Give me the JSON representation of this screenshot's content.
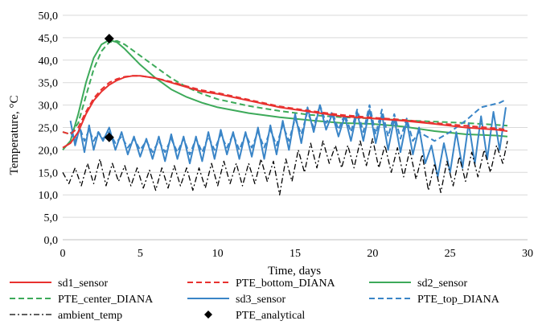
{
  "chart_data": {
    "type": "line",
    "title": "",
    "xlabel": "Time, days",
    "ylabel": "Temperature, °C",
    "xlim": [
      0,
      30
    ],
    "ylim": [
      0,
      50
    ],
    "x_ticks": [
      "0",
      "5",
      "10",
      "15",
      "20",
      "25",
      "30"
    ],
    "y_ticks": [
      "0,0",
      "5,0",
      "10,0",
      "15,0",
      "20,0",
      "25,0",
      "30,0",
      "35,0",
      "40,0",
      "45,0",
      "50,0"
    ],
    "grid": true,
    "legend_position": "bottom",
    "series": [
      {
        "name": "sd1_sensor",
        "color": "#e8312f",
        "style": "solid",
        "x": [
          0,
          0.5,
          1,
          1.5,
          2,
          2.5,
          3,
          3.5,
          4,
          4.5,
          5,
          6,
          7,
          8,
          9,
          10,
          12,
          14,
          16,
          18,
          20,
          22,
          24,
          26,
          28,
          28.7
        ],
        "y": [
          20.5,
          21.5,
          24,
          28,
          31,
          33,
          34.5,
          35.5,
          36.2,
          36.5,
          36.5,
          36,
          35,
          34,
          33,
          32.5,
          31,
          29.5,
          28.5,
          27.5,
          27,
          26.5,
          25.8,
          25,
          24.5,
          24.2
        ]
      },
      {
        "name": "PTE_bottom_DIANA",
        "color": "#e8312f",
        "style": "dashed",
        "x": [
          0,
          0.5,
          1,
          1.5,
          2,
          2.5,
          3,
          3.5,
          4,
          4.5,
          5,
          6,
          7,
          8,
          9,
          10,
          12,
          14,
          16,
          18,
          20,
          22,
          24,
          26,
          28,
          28.7
        ],
        "y": [
          24,
          23.5,
          25,
          28.5,
          31.5,
          33.5,
          35,
          35.8,
          36.3,
          36.5,
          36.5,
          36,
          35.2,
          34.2,
          33.3,
          32.7,
          31.2,
          29.7,
          28.7,
          27.8,
          27.2,
          26.7,
          26,
          25.4,
          24.8,
          24.5
        ]
      },
      {
        "name": "sd2_sensor",
        "color": "#3daa5a",
        "style": "solid",
        "x": [
          0,
          0.5,
          1,
          1.5,
          2,
          2.5,
          3,
          3.5,
          4,
          5,
          6,
          7,
          8,
          9,
          10,
          12,
          14,
          16,
          18,
          20,
          22,
          24,
          26,
          28,
          28.7
        ],
        "y": [
          20,
          22,
          28,
          35,
          40.5,
          43.5,
          44.5,
          44,
          42.5,
          39,
          36,
          33.5,
          31.8,
          30.5,
          29.5,
          28.2,
          27.3,
          26.6,
          26,
          25.8,
          25.2,
          24.2,
          23.5,
          23.2,
          23
        ]
      },
      {
        "name": "PTE_center_DIANA",
        "color": "#3daa5a",
        "style": "dashed",
        "x": [
          0,
          0.5,
          1,
          1.5,
          2,
          2.5,
          3,
          3.5,
          4,
          5,
          6,
          7,
          8,
          9,
          10,
          12,
          14,
          16,
          18,
          20,
          22,
          24,
          26,
          28,
          28.7
        ],
        "y": [
          24,
          23.5,
          26,
          32,
          38,
          42,
          44,
          44.3,
          43.5,
          41,
          38.5,
          36,
          34,
          32.5,
          31.3,
          29.8,
          28.7,
          27.8,
          27.3,
          27,
          26.6,
          26.3,
          26,
          25.6,
          25.4
        ]
      },
      {
        "name": "sd3_sensor",
        "color": "#3a85c7",
        "style": "solid",
        "x": [
          0.5,
          0.8,
          1.1,
          1.4,
          1.7,
          2,
          2.3,
          2.6,
          3,
          3.4,
          3.8,
          4.2,
          4.6,
          5,
          5.4,
          5.8,
          6.2,
          6.6,
          7,
          7.4,
          7.8,
          8.2,
          8.6,
          9,
          9.4,
          9.8,
          10.2,
          10.6,
          11,
          11.4,
          11.8,
          12.2,
          12.6,
          13,
          13.4,
          13.8,
          14.2,
          14.6,
          15,
          15.4,
          15.8,
          16.2,
          16.6,
          17,
          17.4,
          17.8,
          18.2,
          18.6,
          19,
          19.4,
          19.8,
          20.2,
          20.6,
          21,
          21.4,
          21.8,
          22.2,
          22.6,
          23,
          23.4,
          23.8,
          24.2,
          24.6,
          25,
          25.4,
          25.8,
          26.2,
          26.6,
          27,
          27.4,
          27.8,
          28.2,
          28.6
        ],
        "y": [
          26.5,
          21,
          25,
          19.5,
          25.5,
          20,
          24,
          22,
          25,
          20,
          24,
          19,
          23,
          18.5,
          22.5,
          18,
          23,
          17.5,
          23.5,
          18,
          23,
          17,
          23,
          17.5,
          24,
          18,
          24.5,
          19,
          24,
          18,
          24,
          18.5,
          25,
          18,
          25.5,
          19,
          26.5,
          20,
          28,
          21.5,
          29.5,
          24,
          30,
          24.5,
          28,
          23,
          27.5,
          22,
          28.5,
          22,
          29,
          21.5,
          28,
          20,
          27,
          19.5,
          26.5,
          19,
          25,
          17,
          21,
          14,
          21.5,
          15,
          24,
          16,
          26,
          17,
          27.5,
          18,
          28.5,
          20,
          29.5
        ]
      },
      {
        "name": "PTE_top_DIANA",
        "color": "#3a85c7",
        "style": "dashed",
        "x": [
          0.5,
          0.8,
          1.1,
          1.4,
          1.7,
          2,
          2.3,
          2.6,
          3,
          3.4,
          3.8,
          4.2,
          4.6,
          5,
          5.4,
          5.8,
          6.2,
          6.6,
          7,
          7.4,
          7.8,
          8.2,
          8.6,
          9,
          9.4,
          9.8,
          10.2,
          10.6,
          11,
          11.4,
          11.8,
          12.2,
          12.6,
          13,
          13.4,
          13.8,
          14.2,
          14.6,
          15,
          15.4,
          15.8,
          16.2,
          16.6,
          17,
          17.4,
          17.8,
          18.2,
          18.6,
          19,
          19.4,
          19.8,
          20.2,
          20.6,
          21,
          21.4,
          21.8,
          22.2,
          22.6,
          23,
          24,
          25,
          26,
          27,
          27.6,
          28.2,
          28.6
        ],
        "y": [
          24,
          22,
          25,
          22,
          24.5,
          22,
          24,
          22.5,
          24,
          21.5,
          23,
          20.5,
          22.5,
          20,
          22,
          19.5,
          22,
          19.5,
          22.5,
          19.5,
          22.5,
          19,
          22.5,
          19.5,
          23,
          20,
          23.5,
          20.5,
          23.5,
          20,
          23.5,
          20.5,
          24,
          20.5,
          24.5,
          21,
          25.5,
          22,
          27,
          23.5,
          28.5,
          25,
          30,
          26,
          28.5,
          24.5,
          28,
          24,
          29,
          24,
          30,
          23.5,
          29,
          23,
          28,
          22.5,
          27,
          22,
          24,
          22,
          24,
          26.5,
          29.5,
          30,
          30.5,
          31.2
        ]
      },
      {
        "name": "ambient_temp",
        "color": "#000000",
        "style": "dashdot",
        "x": [
          0,
          0.4,
          0.8,
          1.2,
          1.6,
          2,
          2.4,
          2.8,
          3.2,
          3.6,
          4,
          4.4,
          4.8,
          5.2,
          5.6,
          6,
          6.4,
          6.8,
          7.2,
          7.6,
          8,
          8.4,
          8.8,
          9.2,
          9.6,
          10,
          10.4,
          10.8,
          11.2,
          11.6,
          12,
          12.4,
          12.8,
          13.2,
          13.6,
          14,
          14.4,
          14.8,
          15.2,
          15.6,
          16,
          16.4,
          16.8,
          17.2,
          17.6,
          18,
          18.4,
          18.8,
          19.2,
          19.6,
          20,
          20.4,
          20.8,
          21.2,
          21.6,
          22,
          22.4,
          22.8,
          23.2,
          23.6,
          24,
          24.4,
          24.8,
          25.2,
          25.6,
          26,
          26.4,
          26.8,
          27.2,
          27.6,
          28,
          28.4,
          28.7
        ],
        "y": [
          15,
          12.5,
          16,
          12,
          17,
          12.5,
          18,
          12,
          17,
          13,
          16.5,
          12,
          16,
          11.5,
          15.5,
          11,
          16,
          11.5,
          16.5,
          12,
          16,
          11,
          16,
          11.5,
          17,
          12,
          17.5,
          12.5,
          17,
          12,
          17,
          12.5,
          18,
          13,
          17.5,
          10,
          18,
          13,
          20,
          15,
          21.5,
          16,
          22,
          17,
          21,
          16,
          21,
          16,
          22,
          16.5,
          22.5,
          16,
          21,
          15,
          20.5,
          14,
          20,
          13.5,
          19,
          11,
          17,
          10.5,
          17.5,
          12,
          18.5,
          13,
          19.5,
          14,
          20,
          15,
          21,
          17,
          22
        ]
      },
      {
        "name": "PTE_analytical",
        "color": "#000000",
        "style": "marker",
        "x": [
          3,
          3
        ],
        "y": [
          44.8,
          22.8
        ]
      }
    ]
  }
}
